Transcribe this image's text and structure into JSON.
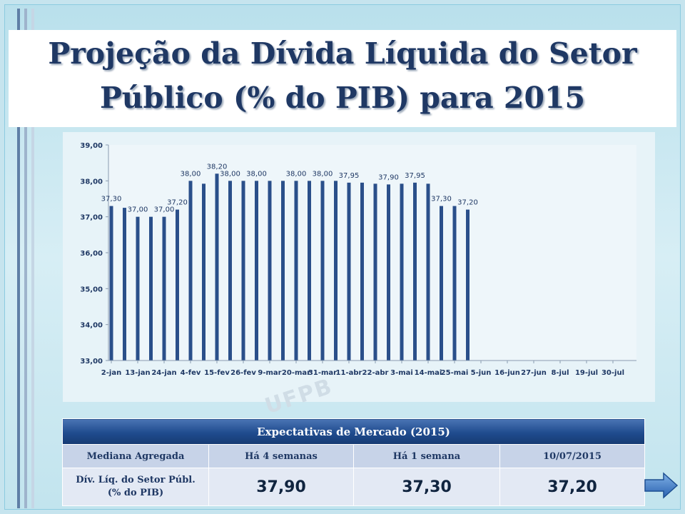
{
  "slide": {
    "title_line1": "Projeção da Dívida Líquida do Setor",
    "title_line2": "Público (% do PIB) para 2015",
    "watermark": "UFPB"
  },
  "chart_data": {
    "type": "bar",
    "title": "",
    "xlabel": "",
    "ylabel": "",
    "ylim": [
      33,
      39
    ],
    "yticks": [
      "33,00",
      "34,00",
      "35,00",
      "36,00",
      "37,00",
      "38,00",
      "39,00"
    ],
    "bar_color": "#2a4f8a",
    "grid": false,
    "x_tick_labels": [
      "2-jan",
      "13-jan",
      "24-jan",
      "4-fev",
      "15-fev",
      "26-fev",
      "9-mar",
      "20-mar",
      "31-mar",
      "11-abr",
      "22-abr",
      "3-mai",
      "14-mai",
      "25-mai",
      "5-jun",
      "16-jun",
      "27-jun",
      "8-jul",
      "19-jul",
      "30-jul"
    ],
    "series": [
      {
        "values": [
          37.3,
          37.25,
          37.0,
          37.0,
          37.0,
          37.2,
          38.0,
          37.92,
          38.2,
          38.0,
          38.0,
          38.0,
          38.0,
          38.0,
          38.0,
          38.0,
          38.0,
          38.0,
          37.95,
          37.95,
          37.92,
          37.9,
          37.92,
          37.95,
          37.92,
          37.3,
          37.3,
          37.2
        ]
      }
    ],
    "data_labels": [
      {
        "index": 0,
        "text": "37,30"
      },
      {
        "index": 2,
        "text": "37,00"
      },
      {
        "index": 4,
        "text": "37,00"
      },
      {
        "index": 5,
        "text": "37,20"
      },
      {
        "index": 6,
        "text": "38,00"
      },
      {
        "index": 8,
        "text": "38,20"
      },
      {
        "index": 9,
        "text": "38,00"
      },
      {
        "index": 11,
        "text": "38,00"
      },
      {
        "index": 14,
        "text": "38,00"
      },
      {
        "index": 16,
        "text": "38,00"
      },
      {
        "index": 18,
        "text": "37,95"
      },
      {
        "index": 21,
        "text": "37,90"
      },
      {
        "index": 23,
        "text": "37,95"
      },
      {
        "index": 25,
        "text": "37,30"
      },
      {
        "index": 27,
        "text": "37,20"
      }
    ]
  },
  "table": {
    "title": "Expectativas de Mercado (2015)",
    "headers": [
      "Mediana Agregada",
      "Há 4 semanas",
      "Há 1 semana",
      "10/07/2015"
    ],
    "row_label_line1": "Dív. Líq. do Setor Públ.",
    "row_label_line2": "(% do PIB)",
    "values": [
      "37,90",
      "37,30",
      "37,20"
    ]
  },
  "colors": {
    "title": "#1f3864",
    "bar": "#2a4f8a",
    "table_header": "#1f4b8e",
    "accent": "#4f81bd"
  },
  "icons": {
    "next": "right-arrow-icon"
  }
}
